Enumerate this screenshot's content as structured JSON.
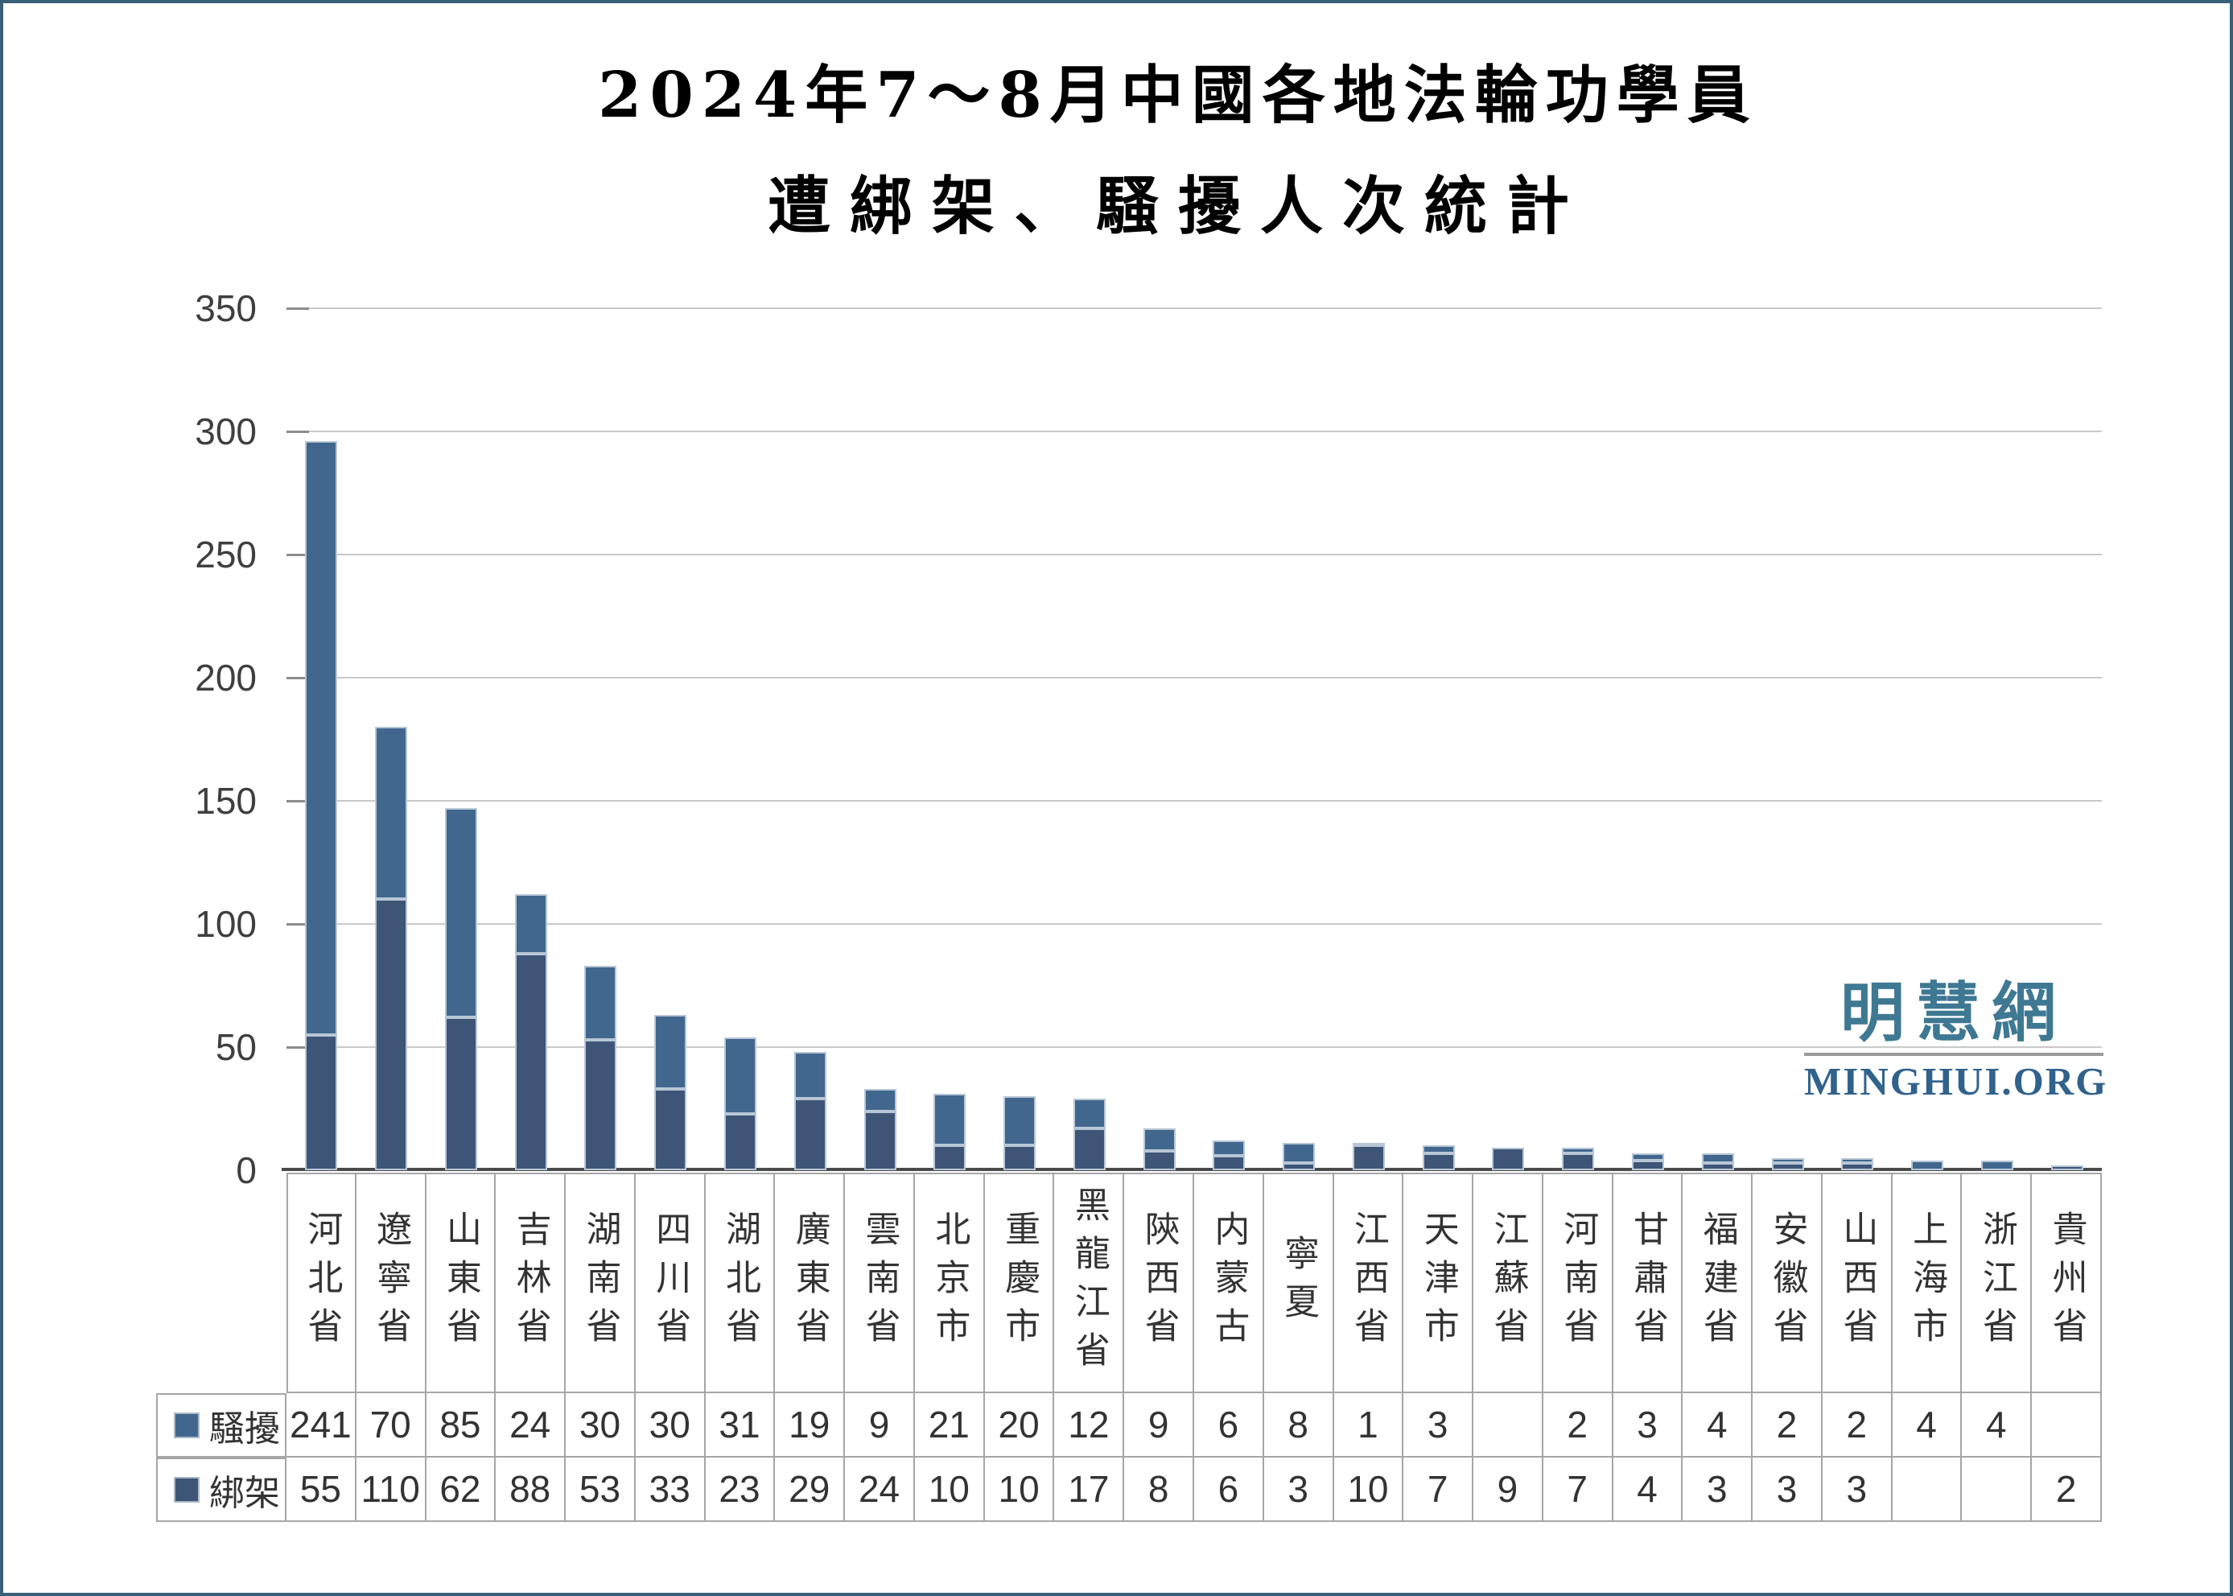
{
  "title": {
    "line1": "2024年7～8月中國各地法輪功學員",
    "line2": "遭綁架、騷擾人次統計"
  },
  "watermark": {
    "chinese": "明慧網",
    "english": "MINGHUI.ORG"
  },
  "chart_data": {
    "type": "bar",
    "stacked": true,
    "title": "2024年7～8月中國各地法輪功學員遭綁架、騷擾人次統計",
    "categories": [
      "河北省",
      "遼寧省",
      "山東省",
      "吉林省",
      "湖南省",
      "四川省",
      "湖北省",
      "廣東省",
      "雲南省",
      "北京市",
      "重慶市",
      "黑龍江省",
      "陝西省",
      "内蒙古",
      "寧夏",
      "江西省",
      "天津市",
      "江蘇省",
      "河南省",
      "甘肅省",
      "福建省",
      "安徽省",
      "山西省",
      "上海市",
      "浙江省",
      "貴州省"
    ],
    "series": [
      {
        "name": "騷擾",
        "color": "#41678E",
        "values": [
          241,
          70,
          85,
          24,
          30,
          30,
          31,
          19,
          9,
          21,
          20,
          12,
          9,
          6,
          8,
          1,
          3,
          null,
          2,
          3,
          4,
          2,
          2,
          4,
          4,
          null
        ]
      },
      {
        "name": "綁架",
        "color": "#3E5577",
        "values": [
          55,
          110,
          62,
          88,
          53,
          33,
          23,
          29,
          24,
          10,
          10,
          17,
          8,
          6,
          3,
          10,
          7,
          9,
          7,
          4,
          3,
          3,
          3,
          null,
          null,
          2
        ]
      }
    ],
    "ylim": [
      0,
      350
    ],
    "yticks": [
      0,
      50,
      100,
      150,
      200,
      250,
      300,
      350
    ],
    "grid": true,
    "legend_position": "table-left",
    "colors": {
      "gridline": "#C9C9C9",
      "axis": "#4A4A4A",
      "table_border": "#A6A6A6",
      "page_border": "#3A5F78"
    }
  }
}
